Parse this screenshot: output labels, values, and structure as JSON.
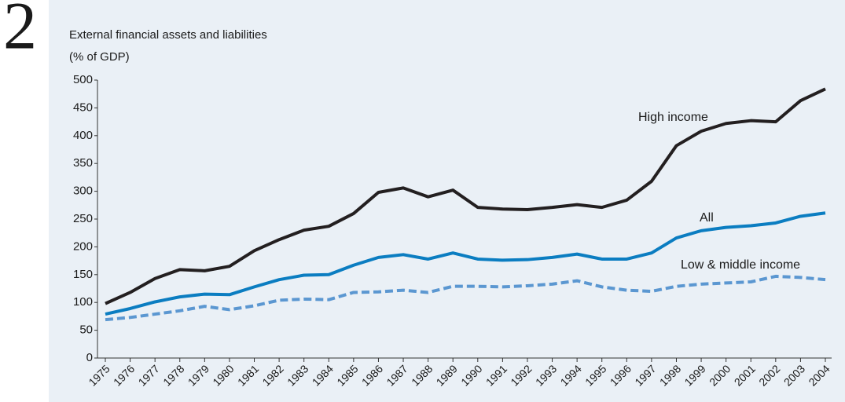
{
  "figure_number": "2",
  "chart_data": {
    "type": "line",
    "title": "External financial assets and liabilities",
    "subtitle": "(% of GDP)",
    "categories": [
      "1975",
      "1976",
      "1977",
      "1978",
      "1979",
      "1980",
      "1981",
      "1982",
      "1983",
      "1984",
      "1985",
      "1986",
      "1987",
      "1988",
      "1989",
      "1990",
      "1991",
      "1992",
      "1993",
      "1994",
      "1995",
      "1996",
      "1997",
      "1998",
      "1999",
      "2000",
      "2001",
      "2002",
      "2003",
      "2004"
    ],
    "series": [
      {
        "name": "High income",
        "color": "#231f20",
        "dash": false,
        "values": [
          98,
          118,
          143,
          159,
          157,
          165,
          193,
          213,
          230,
          237,
          260,
          298,
          306,
          290,
          302,
          271,
          268,
          267,
          271,
          276,
          271,
          284,
          318,
          382,
          408,
          422,
          427,
          425,
          463,
          484
        ]
      },
      {
        "name": "All",
        "color": "#0b7dc1",
        "dash": false,
        "values": [
          79,
          89,
          101,
          110,
          115,
          114,
          128,
          141,
          149,
          150,
          167,
          181,
          186,
          178,
          189,
          178,
          176,
          177,
          181,
          187,
          178,
          178,
          189,
          216,
          229,
          235,
          238,
          243,
          255,
          261
        ]
      },
      {
        "name": "Low & middle income",
        "color": "#5b97d1",
        "dash": true,
        "values": [
          69,
          73,
          79,
          85,
          93,
          87,
          94,
          104,
          106,
          105,
          118,
          119,
          122,
          118,
          129,
          129,
          128,
          130,
          133,
          139,
          128,
          122,
          120,
          129,
          133,
          135,
          137,
          147,
          145,
          141
        ]
      }
    ],
    "ylim": [
      0,
      500
    ],
    "yticks": [
      0,
      50,
      100,
      150,
      200,
      250,
      300,
      350,
      400,
      450,
      500
    ],
    "grid": false
  }
}
